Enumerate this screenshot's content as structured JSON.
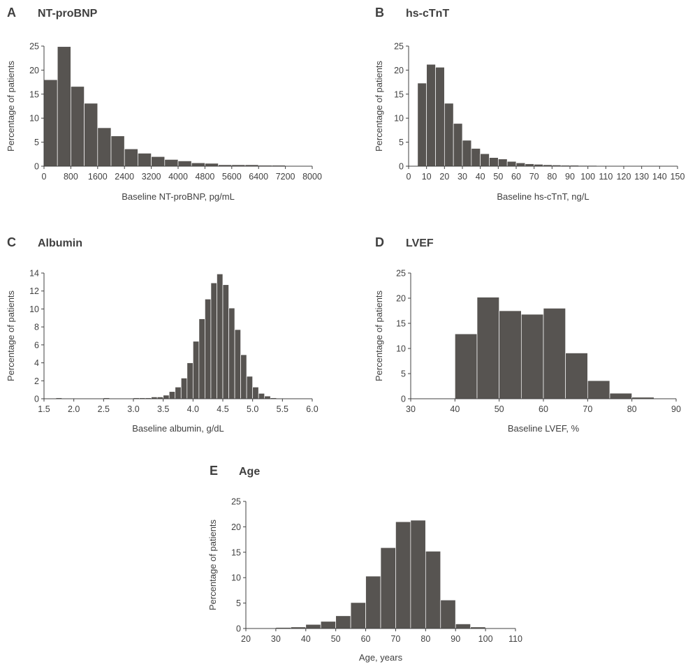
{
  "chart_data": [
    {
      "type": "bar",
      "letter": "A",
      "title": "NT-proBNP",
      "xlabel": "Baseline NT-proBNP, pg/mL",
      "ylabel": "Percentage of patients",
      "xlim": [
        0,
        8000
      ],
      "ylim": [
        0,
        25
      ],
      "xticks": [
        0,
        800,
        1600,
        2400,
        3200,
        4000,
        4800,
        5600,
        6400,
        7200,
        8000
      ],
      "yticks": [
        0,
        5,
        10,
        15,
        20,
        25
      ],
      "bin_start": 0,
      "bin_width": 400,
      "values": [
        18,
        24.9,
        16.6,
        13.1,
        8,
        6.3,
        3.6,
        2.7,
        2,
        1.4,
        1.1,
        0.7,
        0.6,
        0.3,
        0.3,
        0.3,
        0.2,
        0.2,
        0.1,
        0.1
      ]
    },
    {
      "type": "bar",
      "letter": "B",
      "title": "hs-cTnT",
      "xlabel": "Baseline hs-cTnT, ng/L",
      "ylabel": "Percentage of patients",
      "xlim": [
        0,
        150
      ],
      "ylim": [
        0,
        25
      ],
      "xticks": [
        0,
        10,
        20,
        30,
        40,
        50,
        60,
        70,
        80,
        90,
        100,
        110,
        120,
        130,
        140,
        150
      ],
      "yticks": [
        0,
        5,
        10,
        15,
        20,
        25
      ],
      "bin_start": 5,
      "bin_width": 5,
      "values": [
        17.3,
        21.2,
        20.6,
        13.1,
        8.9,
        5.4,
        3.7,
        2.6,
        1.8,
        1.5,
        1,
        0.7,
        0.5,
        0.4,
        0.3,
        0.25,
        0.2,
        0.2,
        0.15,
        0.15,
        0.1,
        0.1,
        0.1,
        0.1,
        0.05,
        0.05,
        0.05,
        0.05,
        0.05
      ]
    },
    {
      "type": "bar",
      "letter": "C",
      "title": "Albumin",
      "xlabel": "Baseline albumin, g/dL",
      "ylabel": "Percentage of patients",
      "xlim": [
        1.5,
        6.0
      ],
      "ylim": [
        0,
        14
      ],
      "xticks": [
        "1.5",
        "2.0",
        "2.5",
        "3.0",
        "3.5",
        "4.0",
        "4.5",
        "5.0",
        "5.5",
        "6.0"
      ],
      "yticks": [
        0,
        2,
        4,
        6,
        8,
        10,
        12,
        14
      ],
      "bin_start": 1.5,
      "bin_width": 0.1,
      "values": [
        0,
        0,
        0.1,
        0,
        0,
        0,
        0,
        0,
        0,
        0,
        0.1,
        0,
        0,
        0,
        0,
        0.1,
        0.1,
        0.1,
        0.2,
        0.2,
        0.4,
        0.8,
        1.3,
        2.3,
        4.0,
        6.4,
        8.9,
        11.1,
        12.9,
        13.9,
        12.7,
        10.1,
        7.7,
        4.9,
        2.5,
        1.3,
        0.6,
        0.3,
        0.1,
        0.05,
        0,
        0,
        0,
        0,
        0
      ]
    },
    {
      "type": "bar",
      "letter": "D",
      "title": "LVEF",
      "xlabel": "Baseline LVEF, %",
      "ylabel": "Percentage of patients",
      "xlim": [
        30,
        90
      ],
      "ylim": [
        0,
        25
      ],
      "xticks": [
        30,
        40,
        50,
        60,
        70,
        80,
        90
      ],
      "yticks": [
        0,
        5,
        10,
        15,
        20,
        25
      ],
      "bin_start": 40,
      "bin_width": 5,
      "values": [
        12.9,
        20.2,
        17.5,
        16.8,
        18,
        9.1,
        3.6,
        1.1,
        0.3
      ]
    },
    {
      "type": "bar",
      "letter": "E",
      "title": "Age",
      "xlabel": "Age, years",
      "ylabel": "Percentage of patients",
      "xlim": [
        20,
        110
      ],
      "ylim": [
        0,
        25
      ],
      "xticks": [
        20,
        30,
        40,
        50,
        60,
        70,
        80,
        90,
        100,
        110
      ],
      "yticks": [
        0,
        5,
        10,
        15,
        20,
        25
      ],
      "bin_start": 30,
      "bin_width": 5,
      "values": [
        0.2,
        0.3,
        0.8,
        1.4,
        2.5,
        5.1,
        10.3,
        15.9,
        21,
        21.3,
        15.2,
        5.6,
        0.9,
        0.3,
        0.1
      ]
    }
  ]
}
